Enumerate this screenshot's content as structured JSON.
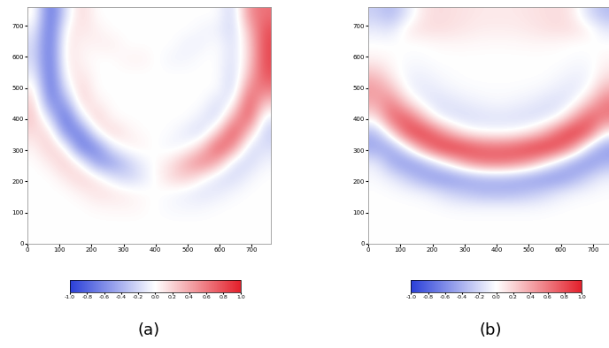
{
  "chart_data": [
    {
      "type": "heatmap",
      "title": "(a)",
      "xlim": [
        0,
        760
      ],
      "ylim": [
        0,
        760
      ],
      "xticks": [
        0,
        100,
        200,
        300,
        400,
        500,
        600,
        700
      ],
      "yticks": [
        0,
        100,
        200,
        300,
        400,
        500,
        600,
        700
      ],
      "cells": [
        [
          0,
          0,
          0,
          0,
          0,
          0,
          0,
          0,
          0,
          0,
          0,
          0,
          0,
          0,
          0,
          0
        ],
        [
          0,
          0,
          0,
          0,
          0,
          0,
          0,
          0,
          0,
          0,
          0,
          0,
          0,
          0,
          0,
          0
        ],
        [
          0,
          0,
          0,
          0,
          0.03,
          0.04,
          0.05,
          0.03,
          -0.01,
          -0.04,
          -0.05,
          -0.04,
          -0.01,
          0,
          0,
          0
        ],
        [
          0,
          0,
          0,
          0.06,
          0.14,
          0.13,
          0.07,
          0.02,
          0,
          -0.03,
          -0.09,
          -0.15,
          -0.11,
          -0.04,
          0,
          0
        ],
        [
          0,
          0,
          0.1,
          0.22,
          0.1,
          -0.13,
          -0.25,
          -0.14,
          0.03,
          0.19,
          0.24,
          0.04,
          -0.17,
          -0.2,
          -0.06,
          0
        ],
        [
          0,
          0.09,
          0.25,
          0.01,
          -0.52,
          -0.54,
          -0.29,
          -0.08,
          0.02,
          0.14,
          0.39,
          0.59,
          0.35,
          -0.17,
          -0.21,
          -0.05
        ],
        [
          0.05,
          0.24,
          0.05,
          -0.72,
          -0.66,
          -0.13,
          0.06,
          0.06,
          -0.01,
          -0.07,
          -0.02,
          0.26,
          0.81,
          0.48,
          -0.2,
          -0.16
        ],
        [
          0.15,
          0.19,
          -0.6,
          -0.72,
          -0.03,
          0.22,
          0.08,
          0.01,
          0,
          -0.02,
          -0.13,
          -0.19,
          0.25,
          0.85,
          0.23,
          -0.25
        ],
        [
          0.25,
          -0.18,
          -0.85,
          -0.14,
          0.25,
          0.03,
          0,
          0,
          0,
          0,
          0,
          -0.12,
          -0.21,
          0.42,
          0.77,
          -0.13
        ],
        [
          0.21,
          -0.64,
          -0.52,
          0.21,
          0.08,
          0,
          0,
          0,
          0,
          0,
          0,
          0,
          -0.19,
          -0.04,
          0.83,
          0.23
        ],
        [
          0.1,
          -0.83,
          -0.14,
          0.22,
          0,
          0,
          0,
          0,
          0,
          0,
          0,
          0,
          0,
          -0.26,
          0.57,
          0.6
        ],
        [
          -0.07,
          -0.84,
          0.06,
          0.12,
          0,
          0,
          0,
          0,
          0,
          0,
          0,
          0,
          0,
          -0.23,
          0.29,
          0.78
        ],
        [
          -0.18,
          -0.82,
          0.14,
          0.05,
          0,
          0,
          0.05,
          0.06,
          0,
          -0.06,
          -0.05,
          0,
          0,
          -0.19,
          0.18,
          0.82
        ],
        [
          -0.17,
          -0.82,
          0.14,
          0.05,
          0.06,
          0.08,
          0,
          0,
          0,
          0,
          -0.08,
          -0.06,
          0,
          -0.19,
          0.18,
          0.82
        ],
        [
          -0.07,
          -0.84,
          0.06,
          0.12,
          0.07,
          0,
          0,
          0,
          0,
          0,
          0,
          -0.05,
          -0.07,
          -0.23,
          0.29,
          0.78
        ],
        [
          0.07,
          -0.84,
          -0.14,
          0.2,
          0,
          0,
          0,
          0,
          0,
          0,
          0,
          0,
          0,
          -0.26,
          0.52,
          0.64
        ]
      ],
      "colorbar_range": [
        -1.0,
        1.0
      ],
      "colorbar_ticks": [
        {
          "value": -1.0,
          "label": "-1.0"
        },
        {
          "value": -0.8,
          "label": "-0.8"
        },
        {
          "value": -0.6,
          "label": "-0.6"
        },
        {
          "value": -0.4,
          "label": "-0.4"
        },
        {
          "value": -0.2,
          "label": "-0.2"
        },
        {
          "value": 0.0,
          "label": "0.0"
        },
        {
          "value": 0.2,
          "label": "0.2"
        },
        {
          "value": 0.4,
          "label": "0.4"
        },
        {
          "value": 0.6,
          "label": "0.6"
        },
        {
          "value": 0.8,
          "label": "0.8"
        },
        {
          "value": 1.0,
          "label": "1.0"
        }
      ]
    },
    {
      "type": "heatmap",
      "title": "(b)",
      "xlim": [
        0,
        760
      ],
      "ylim": [
        0,
        760
      ],
      "xticks": [
        0,
        100,
        200,
        300,
        400,
        500,
        600,
        700
      ],
      "yticks": [
        0,
        100,
        200,
        300,
        400,
        500,
        600,
        700
      ],
      "cells": [
        [
          0,
          0,
          0,
          0,
          0,
          0,
          0,
          0,
          0,
          0,
          0,
          0,
          0,
          0,
          0,
          0
        ],
        [
          0,
          0,
          0,
          0,
          0,
          0,
          0,
          0,
          0,
          0,
          0,
          0,
          0,
          0,
          0,
          0
        ],
        [
          0,
          0,
          0,
          0,
          -0.01,
          -0.03,
          -0.04,
          -0.04,
          -0.04,
          -0.04,
          -0.04,
          -0.03,
          -0.01,
          0,
          0,
          0
        ],
        [
          0,
          -0.01,
          -0.03,
          -0.06,
          -0.14,
          -0.26,
          -0.33,
          -0.4,
          -0.41,
          -0.4,
          -0.33,
          -0.25,
          -0.13,
          -0.06,
          -0.03,
          -0.01
        ],
        [
          -0.03,
          -0.1,
          -0.26,
          -0.45,
          -0.57,
          -0.56,
          -0.48,
          -0.4,
          -0.38,
          -0.41,
          -0.5,
          -0.56,
          -0.57,
          -0.43,
          -0.22,
          -0.08
        ],
        [
          -0.09,
          -0.43,
          -0.57,
          -0.46,
          -0.15,
          0.17,
          0.5,
          0.65,
          0.68,
          0.62,
          0.47,
          0.15,
          -0.18,
          -0.5,
          -0.57,
          -0.4
        ],
        [
          -0.47,
          -0.49,
          -0.08,
          0.5,
          0.86,
          0.96,
          0.86,
          0.73,
          0.7,
          0.76,
          0.88,
          0.97,
          0.83,
          0.44,
          -0.25,
          -0.53
        ],
        [
          -0.38,
          0.13,
          0.78,
          0.92,
          0.65,
          0.29,
          0.06,
          -0.02,
          -0.03,
          -0.02,
          0.1,
          0.32,
          0.73,
          0.96,
          0.7,
          0
        ],
        [
          0.08,
          0.69,
          0.76,
          0.36,
          -0.04,
          -0.16,
          -0.19,
          -0.16,
          -0.15,
          -0.16,
          -0.19,
          -0.16,
          -0.02,
          0.41,
          0.77,
          0.58
        ],
        [
          0.37,
          0.61,
          0.22,
          -0.06,
          -0.17,
          -0.14,
          -0.09,
          -0.06,
          -0.04,
          -0.06,
          -0.09,
          -0.15,
          -0.18,
          -0.05,
          0.3,
          0.62
        ],
        [
          0.46,
          0.28,
          -0.04,
          -0.12,
          -0.09,
          -0.04,
          -0.02,
          -0.01,
          -0.01,
          -0.01,
          -0.02,
          -0.04,
          -0.09,
          -0.13,
          -0.01,
          0.33
        ],
        [
          0.27,
          0.07,
          -0.06,
          -0.07,
          -0.03,
          -0.01,
          0,
          0,
          0,
          0,
          0,
          0,
          -0.03,
          -0.07,
          -0.06,
          0.12
        ],
        [
          0.05,
          0.02,
          -0.02,
          -0.02,
          0,
          0,
          0,
          0,
          0,
          0,
          0,
          0,
          0,
          -0.02,
          -0.02,
          0.04
        ],
        [
          0,
          0,
          0,
          0,
          0.02,
          0.03,
          0.03,
          0.02,
          0.02,
          0.02,
          0.03,
          0.03,
          0.02,
          0,
          0,
          0
        ],
        [
          -0.1,
          -0.15,
          0.08,
          0.14,
          0.15,
          0.13,
          0.1,
          0.08,
          0.08,
          0.08,
          0.1,
          0.13,
          0.15,
          0.14,
          0.06,
          -0.12
        ],
        [
          -0.25,
          -0.38,
          -0.15,
          0.1,
          0.16,
          0.14,
          0.12,
          0.1,
          0.1,
          0.1,
          0.12,
          0.14,
          0.16,
          0.08,
          -0.2,
          -0.35
        ]
      ],
      "colorbar_range": [
        -1.0,
        1.0
      ],
      "colorbar_ticks": [
        {
          "value": -1.0,
          "label": "-1.0"
        },
        {
          "value": -0.8,
          "label": "-0.8"
        },
        {
          "value": -0.6,
          "label": "-0.6"
        },
        {
          "value": -0.4,
          "label": "-0.4"
        },
        {
          "value": -0.2,
          "label": "-0.2"
        },
        {
          "value": 0.0,
          "label": "0.0"
        },
        {
          "value": 0.2,
          "label": "0.2"
        },
        {
          "value": 0.4,
          "label": "0.4"
        },
        {
          "value": 0.6,
          "label": "0.6"
        },
        {
          "value": 0.8,
          "label": "0.8"
        },
        {
          "value": 1.0,
          "label": "1.0"
        }
      ]
    }
  ]
}
